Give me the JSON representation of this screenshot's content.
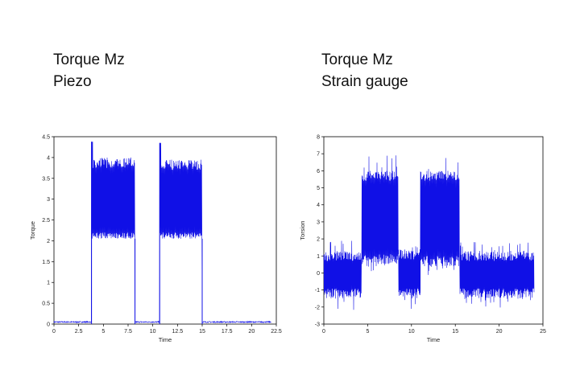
{
  "headings": [
    {
      "line1": "Torque Mz",
      "line2": "Piezo"
    },
    {
      "line1": "Torque Mz",
      "line2": "Strain gauge"
    }
  ],
  "colors": {
    "signal": "#1010e6",
    "axis": "#000000"
  },
  "chart_data": [
    {
      "type": "line",
      "title": "",
      "xlabel": "Time",
      "ylabel": "Torque",
      "xlim": [
        0,
        22.5
      ],
      "ylim": [
        0,
        4.5
      ],
      "xticks": [
        "0",
        "2.5",
        "5",
        "7.5",
        "10",
        "12.5",
        "15",
        "17.5",
        "20",
        "22.5"
      ],
      "yticks": [
        "0",
        "0.5",
        "1",
        "1.5",
        "2",
        "2.5",
        "3",
        "3.5",
        "4",
        "4.5"
      ],
      "grid": false,
      "series": [
        {
          "name": "",
          "baseline": 0.05,
          "segments": [
            {
              "start": 3.8,
              "end": 8.2,
              "min": 2.05,
              "max": 4.0,
              "peak": 4.38
            },
            {
              "start": 10.7,
              "end": 15.0,
              "min": 2.05,
              "max": 3.95,
              "peak": 4.35
            }
          ],
          "x_end": 22.0
        }
      ]
    },
    {
      "type": "line",
      "title": "",
      "xlabel": "Time",
      "ylabel": "Torsion",
      "xlim": [
        0,
        25
      ],
      "ylim": [
        -3,
        8
      ],
      "xticks": [
        "0",
        "5",
        "10",
        "15",
        "20",
        "25"
      ],
      "yticks": [
        "-3",
        "-2",
        "-1",
        "0",
        "1",
        "2",
        "3",
        "4",
        "5",
        "6",
        "7",
        "8"
      ],
      "grid": false,
      "series": [
        {
          "name": "",
          "x_end": 24.0,
          "segments": [
            {
              "start": 0.0,
              "end": 4.3,
              "min": -1.5,
              "max": 1.3,
              "spikemin": -2.3,
              "spikemax": 1.9
            },
            {
              "start": 4.3,
              "end": 8.5,
              "min": 0.5,
              "max": 6.0,
              "spikemin": 0.0,
              "spikemax": 7.3
            },
            {
              "start": 8.5,
              "end": 11.0,
              "min": -1.5,
              "max": 1.4,
              "spikemin": -2.3,
              "spikemax": 1.7
            },
            {
              "start": 11.0,
              "end": 15.5,
              "min": 0.4,
              "max": 6.0,
              "spikemin": -0.4,
              "spikemax": 6.8
            },
            {
              "start": 15.5,
              "end": 24.0,
              "min": -1.5,
              "max": 1.3,
              "spikemin": -2.1,
              "spikemax": 1.9
            }
          ]
        }
      ]
    }
  ]
}
